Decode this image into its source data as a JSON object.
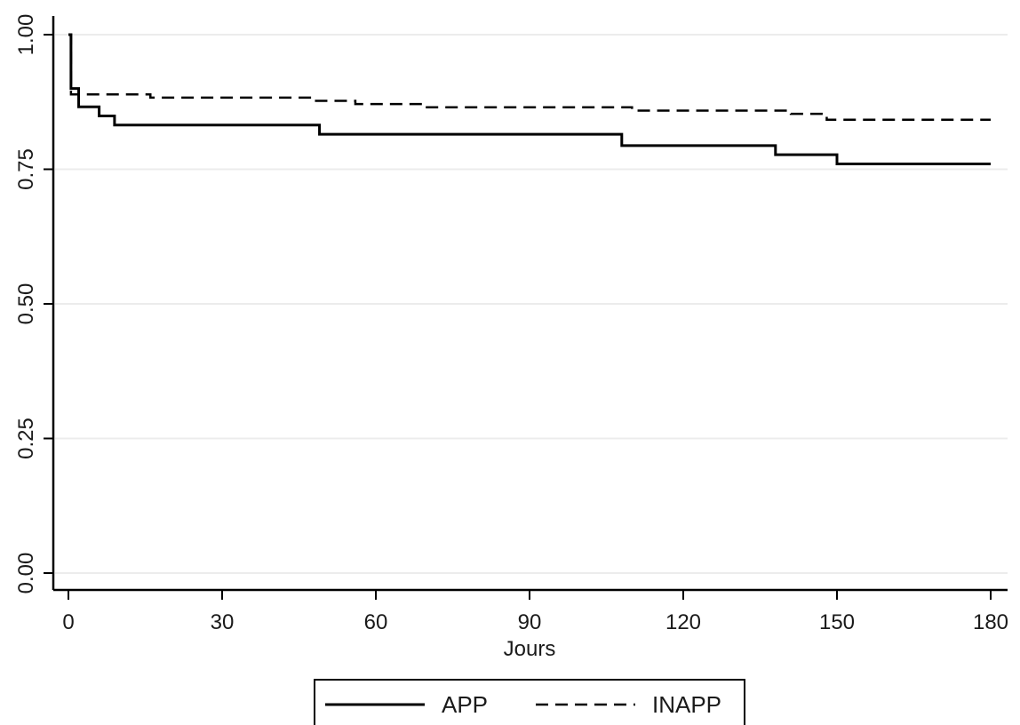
{
  "chart_data": {
    "type": "line",
    "title": "",
    "xlabel": "Jours",
    "ylabel": "",
    "xlim": [
      0,
      180
    ],
    "ylim": [
      0,
      1
    ],
    "x_ticks": [
      0,
      30,
      60,
      90,
      120,
      150,
      180
    ],
    "y_ticks": [
      0,
      0.25,
      0.5,
      0.75,
      1
    ],
    "y_tick_labels": [
      "0.00",
      "0.25",
      "0.50",
      "0.75",
      "1.00"
    ],
    "grid": true,
    "legend_position": "bottom",
    "series": [
      {
        "name": "APP",
        "style": "solid",
        "color": "#000000",
        "x": [
          0,
          0.5,
          2,
          6,
          9,
          49,
          108,
          138,
          150,
          180
        ],
        "y": [
          1.0,
          0.9,
          0.866,
          0.849,
          0.832,
          0.815,
          0.794,
          0.777,
          0.76,
          0.76
        ]
      },
      {
        "name": "INAPP",
        "style": "dashed",
        "color": "#000000",
        "x": [
          0,
          0.5,
          16,
          48,
          56,
          69,
          110,
          141,
          148,
          180
        ],
        "y": [
          1.0,
          0.889,
          0.883,
          0.877,
          0.871,
          0.865,
          0.859,
          0.853,
          0.842,
          0.842
        ]
      }
    ]
  }
}
